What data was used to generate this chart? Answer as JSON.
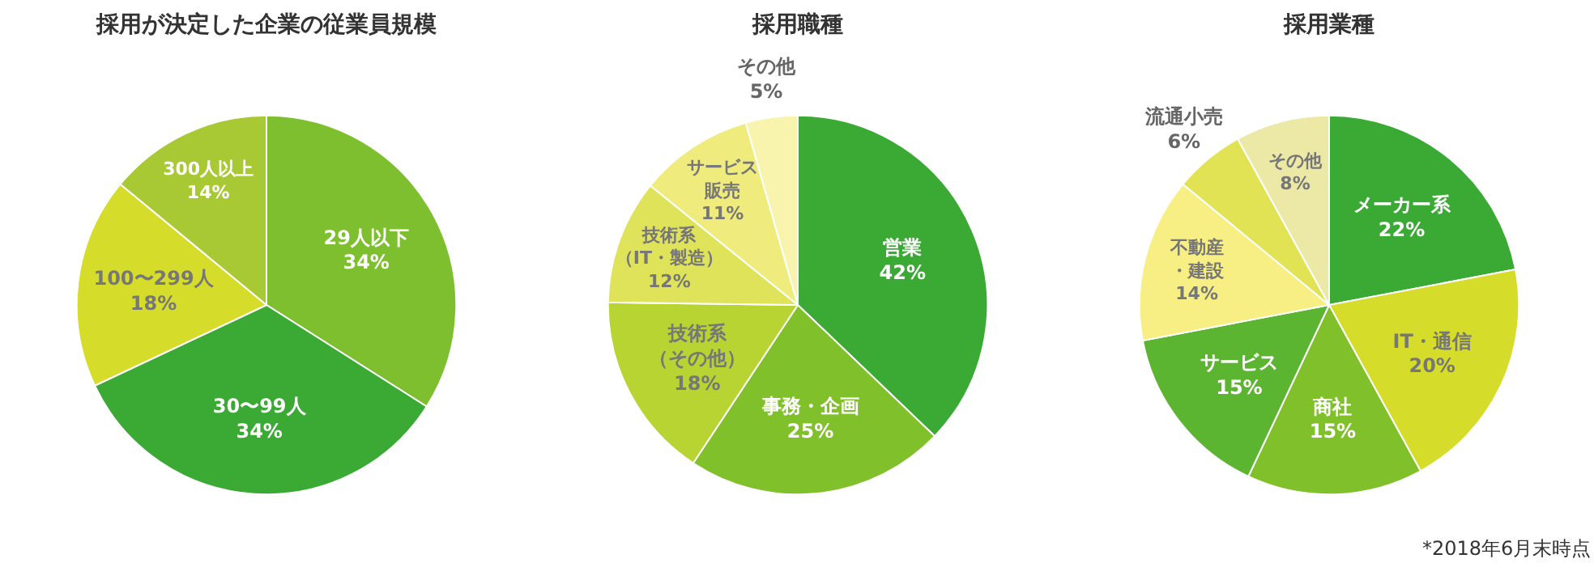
{
  "chart_data": [
    {
      "type": "pie",
      "title": "採用が決定した企業の従業員規模",
      "categories": [
        "29人以下",
        "30〜99人",
        "100〜299人",
        "300人以上"
      ],
      "values": [
        34,
        34,
        18,
        14
      ],
      "value_labels": [
        "34%",
        "34%",
        "18%",
        "14%"
      ],
      "colors": [
        "#7dbf2e",
        "#3aaa35",
        "#d5dc2a",
        "#a9c934"
      ]
    },
    {
      "type": "pie",
      "title": "採用職種",
      "categories": [
        "営業",
        "事務・企画",
        "技術系（その他）",
        "技術系（IT・製造）",
        "サービス販売",
        "その他"
      ],
      "values": [
        42,
        25,
        18,
        12,
        11,
        5
      ],
      "value_labels": [
        "42%",
        "25%",
        "18%",
        "12%",
        "11%",
        "5%"
      ],
      "colors": [
        "#3aaa35",
        "#80c02a",
        "#b7d433",
        "#dfe35a",
        "#efeb7c",
        "#f8f3ad"
      ]
    },
    {
      "type": "pie",
      "title": "採用業種",
      "categories": [
        "メーカー系",
        "IT・通信",
        "商社",
        "サービス",
        "不動産・建設",
        "流通小売",
        "その他"
      ],
      "values": [
        22,
        20,
        15,
        15,
        14,
        6,
        8
      ],
      "value_labels": [
        "22%",
        "20%",
        "15%",
        "15%",
        "14%",
        "6%",
        "8%"
      ],
      "colors": [
        "#3aaa35",
        "#d5dc2a",
        "#80c02a",
        "#5cb531",
        "#f7ef83",
        "#e1e355",
        "#ece8a6"
      ],
      "annotations": [
        "*2018年6月末時点"
      ]
    }
  ]
}
